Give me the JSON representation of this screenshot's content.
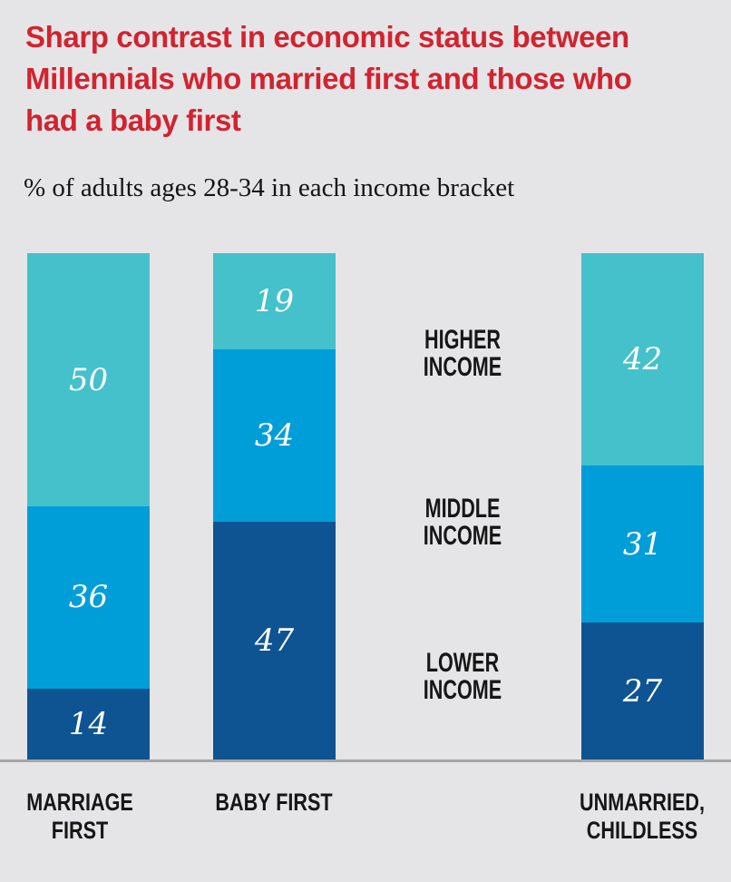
{
  "page": {
    "background_color": "#e5e5e7",
    "baseline_color": "#a6a6a6"
  },
  "header": {
    "title_color": "#d2232f",
    "title_lines": [
      "Sharp contrast in economic status between",
      "Millennials who married first and those who",
      "had a baby first"
    ],
    "subtitle": "% of adults ages 28-34 in each income bracket"
  },
  "chart_data": {
    "type": "bar",
    "stacked": true,
    "unit": "%",
    "title": "Sharp contrast in economic status between Millennials who married first and those who had a baby first",
    "subtitle": "% of adults ages 28-34 in each income bracket",
    "categories": [
      "MARRIAGE FIRST",
      "BABY FIRST",
      "UNMARRIED, CHILDLESS"
    ],
    "category_label_lines": [
      [
        "MARRIAGE",
        "FIRST"
      ],
      [
        "BABY FIRST"
      ],
      [
        "UNMARRIED,",
        "CHILDLESS"
      ]
    ],
    "series": [
      {
        "name": "HIGHER INCOME",
        "color": "#44c1cb",
        "values": [
          50,
          19,
          42
        ]
      },
      {
        "name": "MIDDLE INCOME",
        "color": "#009ed9",
        "values": [
          36,
          34,
          31
        ]
      },
      {
        "name": "LOWER INCOME",
        "color": "#0f5492",
        "values": [
          14,
          47,
          27
        ]
      }
    ],
    "income_labels": [
      {
        "lines": [
          "HIGHER",
          "INCOME"
        ]
      },
      {
        "lines": [
          "MIDDLE",
          "INCOME"
        ]
      },
      {
        "lines": [
          "LOWER",
          "INCOME"
        ]
      }
    ],
    "value_label_color": "#ffffff",
    "ylim": [
      0,
      100
    ],
    "grid": false,
    "legend_position": "between-bars-right-of-second"
  }
}
